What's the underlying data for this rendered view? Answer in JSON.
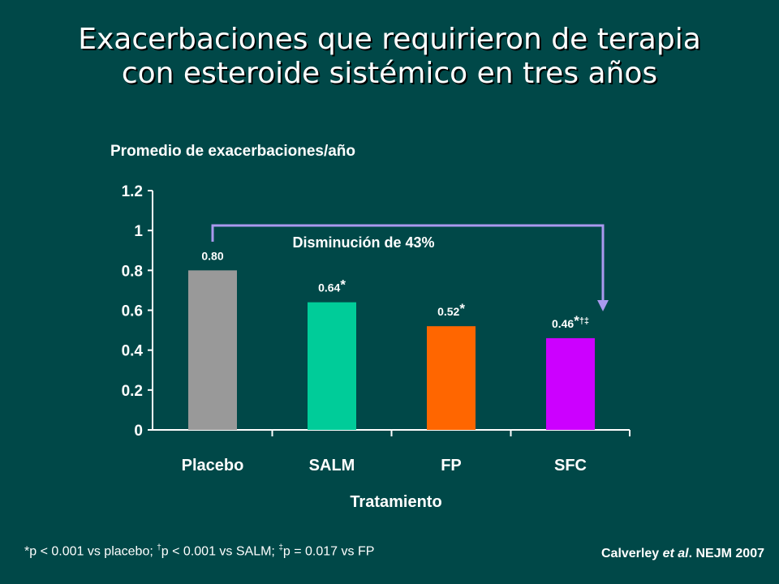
{
  "title": {
    "line1": "Exacerbaciones que requirieron de terapia",
    "line2": "con esteroide sistémico en tres años"
  },
  "chart_data": {
    "type": "bar",
    "ylabel": "Promedio de exacerbaciones/año",
    "xlabel": "Tratamiento",
    "ylim": [
      0,
      1.2
    ],
    "yticks": [
      "0",
      "0.2",
      "0.4",
      "0.6",
      "0.8",
      "1",
      "1.2"
    ],
    "categories": [
      "Placebo",
      "SALM",
      "FP",
      "SFC"
    ],
    "values": [
      0.8,
      0.64,
      0.52,
      0.46
    ],
    "value_labels": [
      "0.80",
      "0.64",
      "0.52",
      "0.46"
    ],
    "value_marks": [
      "",
      "*",
      "*",
      "*†‡"
    ],
    "colors": [
      "#999999",
      "#00cc99",
      "#ff6600",
      "#cc00ff"
    ],
    "annotation": {
      "text": "Disminución de 43%",
      "from": "Placebo",
      "to": "SFC",
      "color": "#aa99ee"
    },
    "grid": false
  },
  "footnote": {
    "p1": "*p < 0.001 vs placebo; ",
    "mark2": "†",
    "p2": "p < 0.001 vs SALM; ",
    "mark3": "‡",
    "p3": "p = 0.017 vs FP"
  },
  "citation": {
    "author": "Calverley ",
    "etal": "et al",
    "rest": ". NEJM 2007"
  }
}
